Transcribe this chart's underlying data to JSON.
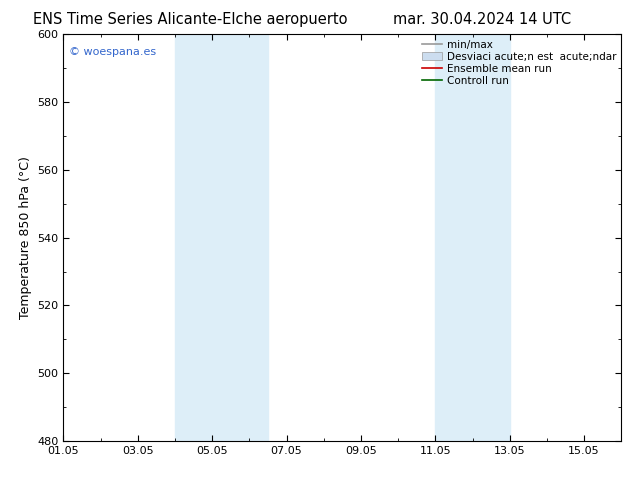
{
  "title_left": "ENS Time Series Alicante-Elche aeropuerto",
  "title_right": "mar. 30.04.2024 14 UTC",
  "ylabel": "Temperature 850 hPa (°C)",
  "ylim": [
    480,
    600
  ],
  "yticks": [
    480,
    500,
    520,
    540,
    560,
    580,
    600
  ],
  "xtick_labels": [
    "01.05",
    "03.05",
    "05.05",
    "07.05",
    "09.05",
    "11.05",
    "13.05",
    "15.05"
  ],
  "xtick_positions": [
    0,
    2,
    4,
    6,
    8,
    10,
    12,
    14
  ],
  "xlim": [
    0,
    15
  ],
  "shaded_bands": [
    {
      "x_start": 3.0,
      "x_end": 5.5,
      "color": "#ddeef8"
    },
    {
      "x_start": 10.0,
      "x_end": 12.0,
      "color": "#ddeef8"
    }
  ],
  "watermark_text": "© woespana.es",
  "watermark_color": "#3366cc",
  "legend_entries": [
    {
      "label": "min/max",
      "color": "#999999",
      "lw": 1.2,
      "style": "line"
    },
    {
      "label": "Desviaci acute;n est  acute;ndar",
      "color": "#ccddef",
      "lw": 5,
      "style": "band"
    },
    {
      "label": "Ensemble mean run",
      "color": "#cc0000",
      "lw": 1.2,
      "style": "line"
    },
    {
      "label": "Controll run",
      "color": "#006600",
      "lw": 1.2,
      "style": "line"
    }
  ],
  "background_color": "#ffffff",
  "plot_bg_color": "#ffffff",
  "title_fontsize": 10.5,
  "ylabel_fontsize": 9,
  "tick_fontsize": 8,
  "legend_fontsize": 7.5,
  "watermark_fontsize": 8
}
